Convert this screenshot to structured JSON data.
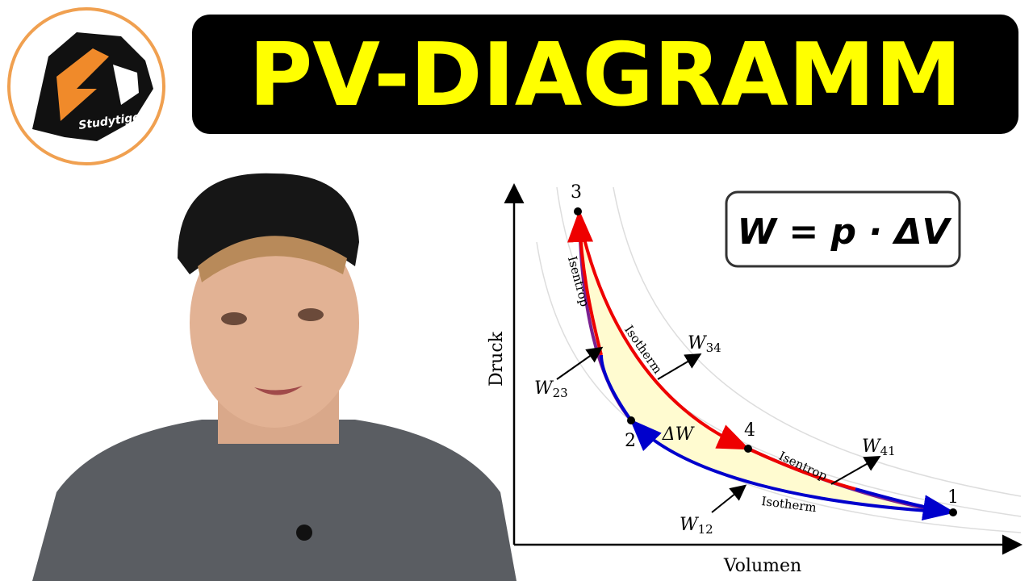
{
  "logo": {
    "text": "Studytiger"
  },
  "header": {
    "title": "PV-DIAGRAMM"
  },
  "formula": "W = p · ΔV",
  "diagram": {
    "y_axis_label": "Druck",
    "x_axis_label": "Volumen",
    "points": [
      "1",
      "2",
      "3",
      "4"
    ],
    "curve_labels": [
      "Isentrop",
      "Isotherm",
      "Isentrop",
      "Isotherm"
    ],
    "area_label": "ΔW",
    "work_labels": [
      {
        "main": "W",
        "sub": "34"
      },
      {
        "main": "W",
        "sub": "23"
      },
      {
        "main": "W",
        "sub": "41"
      },
      {
        "main": "W",
        "sub": "12"
      }
    ]
  }
}
